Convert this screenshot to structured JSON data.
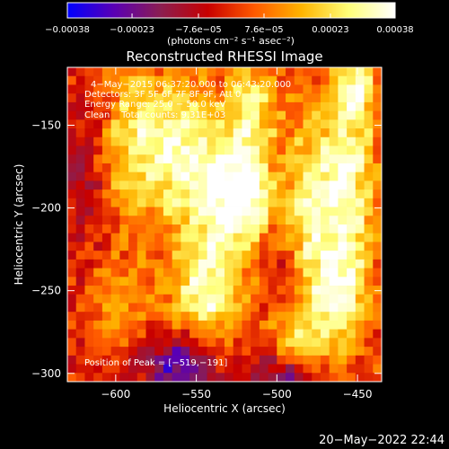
{
  "chart_data": {
    "type": "heatmap",
    "title": "Reconstructed RHESSI Image",
    "xlabel": "Heliocentric X (arcsec)",
    "ylabel": "Heliocentric Y (arcsec)",
    "xlim": [
      -630,
      -435
    ],
    "ylim": [
      -305,
      -115
    ],
    "x_ticks": [
      {
        "value": -600,
        "label": "−600"
      },
      {
        "value": -550,
        "label": "−550"
      },
      {
        "value": -500,
        "label": "−500"
      },
      {
        "value": -450,
        "label": "−450"
      }
    ],
    "y_ticks": [
      {
        "value": -150,
        "label": "−150"
      },
      {
        "value": -200,
        "label": "−200"
      },
      {
        "value": -250,
        "label": "−250"
      },
      {
        "value": -300,
        "label": "−300"
      }
    ],
    "colorbar": {
      "range": [
        -0.00038,
        0.00038
      ],
      "ticks": [
        {
          "value": -0.00038,
          "label": "−0.00038"
        },
        {
          "value": -0.00023,
          "label": "−0.00023"
        },
        {
          "value": -7.6e-05,
          "label": "−7.6e−05"
        },
        {
          "value": 7.6e-05,
          "label": "7.6e−05"
        },
        {
          "value": 0.00023,
          "label": "0.00023"
        },
        {
          "value": 0.00038,
          "label": "0.00038"
        }
      ],
      "unit": "(photons cm⁻² s⁻¹ asec⁻²)",
      "colors": [
        "#0000ff",
        "#5a00b4",
        "#8c1e50",
        "#c80000",
        "#ff5a00",
        "#ffb400",
        "#ffff78",
        "#ffffff"
      ]
    },
    "annotations": [
      "4−May−2015 06:37:20.000 to 06:43:20.000",
      "Detectors: 3F 5F 6F 7F 8F 9F, Att 0",
      "Energy Range: 25.0 − 50.0 keV",
      "Clean    Total counts: 9.31E+03"
    ],
    "peak_label": "Position of Peak = [−519,−191]",
    "peak": {
      "x": -519,
      "y": -191
    },
    "grid_cols": 36,
    "grid_rows": 36,
    "features": [
      {
        "x": -590,
        "y": -160,
        "sx": 12,
        "sy": 35,
        "a": 0.55
      },
      {
        "x": -565,
        "y": -165,
        "sx": 14,
        "sy": 30,
        "a": 0.75
      },
      {
        "x": -540,
        "y": -200,
        "sx": 14,
        "sy": 45,
        "a": 0.7
      },
      {
        "x": -519,
        "y": -191,
        "sx": 12,
        "sy": 20,
        "a": 1.0
      },
      {
        "x": -515,
        "y": -140,
        "sx": 10,
        "sy": 20,
        "a": 0.7
      },
      {
        "x": -480,
        "y": -210,
        "sx": 12,
        "sy": 50,
        "a": 0.7
      },
      {
        "x": -455,
        "y": -180,
        "sx": 12,
        "sy": 45,
        "a": 0.8
      },
      {
        "x": -450,
        "y": -125,
        "sx": 8,
        "sy": 12,
        "a": 0.6
      },
      {
        "x": -545,
        "y": -255,
        "sx": 20,
        "sy": 18,
        "a": 0.55
      },
      {
        "x": -460,
        "y": -255,
        "sx": 12,
        "sy": 25,
        "a": 0.65
      },
      {
        "x": -600,
        "y": -260,
        "sx": 12,
        "sy": 20,
        "a": 0.35
      },
      {
        "x": -490,
        "y": -280,
        "sx": 10,
        "sy": 12,
        "a": 0.45
      },
      {
        "x": -560,
        "y": -295,
        "sx": 16,
        "sy": 14,
        "a": -0.75
      },
      {
        "x": -495,
        "y": -300,
        "sx": 14,
        "sy": 10,
        "a": -0.55
      },
      {
        "x": -495,
        "y": -240,
        "sx": 10,
        "sy": 16,
        "a": -0.35
      },
      {
        "x": -620,
        "y": -180,
        "sx": 8,
        "sy": 30,
        "a": -0.3
      }
    ]
  },
  "footer": {
    "timestamp": "20−May−2022 22:44"
  }
}
